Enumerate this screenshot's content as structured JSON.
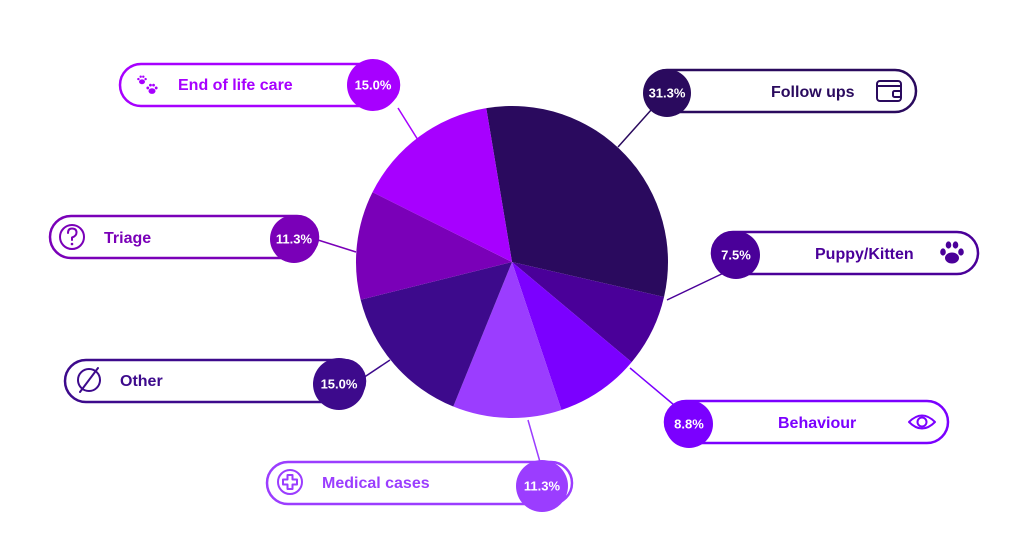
{
  "chart_data": {
    "type": "pie",
    "slices": [
      {
        "label": "Follow ups",
        "value": 31.3,
        "value_label": "31.3%",
        "color": "#2a0a5e",
        "icon": "wallet-icon"
      },
      {
        "label": "Puppy/Kitten",
        "value": 7.5,
        "value_label": "7.5%",
        "color": "#4a0099",
        "icon": "paw-icon"
      },
      {
        "label": "Behaviour",
        "value": 8.8,
        "value_label": "8.8%",
        "color": "#7b00ff",
        "icon": "eye-icon"
      },
      {
        "label": "Medical cases",
        "value": 11.3,
        "value_label": "11.3%",
        "color": "#9b3dff",
        "icon": "medical-cross-icon"
      },
      {
        "label": "Other",
        "value": 15.0,
        "value_label": "15.0%",
        "color": "#3d0a8c",
        "icon": "empty-set-icon"
      },
      {
        "label": "Triage",
        "value": 11.3,
        "value_label": "11.3%",
        "color": "#7a00b8",
        "icon": "question-icon"
      },
      {
        "label": "End of life care",
        "value": 15.0,
        "value_label": "15.0%",
        "color": "#a700ff",
        "icon": "paws-icon"
      }
    ]
  }
}
